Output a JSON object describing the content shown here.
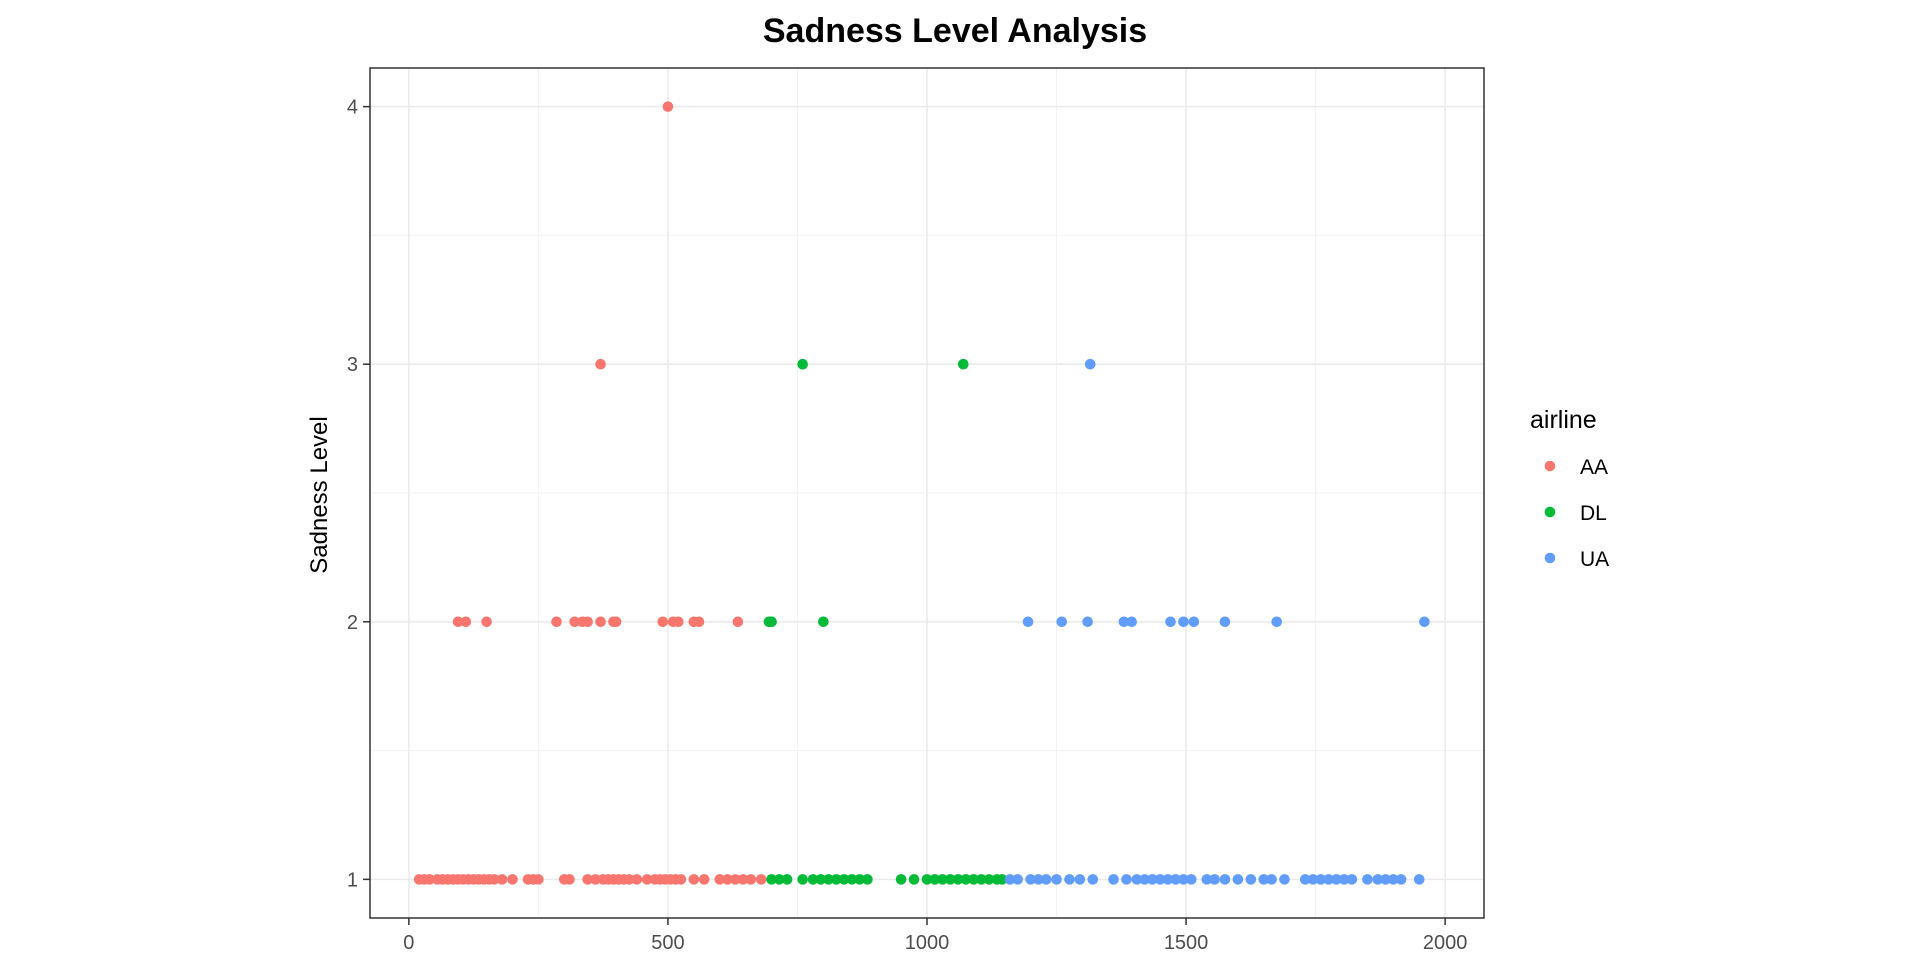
{
  "chart_data": {
    "type": "scatter",
    "title": "Sadness Level Analysis",
    "xlabel": "",
    "ylabel": "Sadness Level",
    "xlim": [
      -75,
      2075
    ],
    "ylim": [
      0.85,
      4.15
    ],
    "x_ticks": [
      0,
      500,
      1000,
      1500,
      2000
    ],
    "y_ticks": [
      1,
      2,
      3,
      4
    ],
    "grid": true,
    "legend": {
      "title": "airline",
      "position": "right"
    },
    "series": [
      {
        "name": "AA",
        "color": "#F8766D",
        "points": [
          [
            500,
            4
          ],
          [
            370,
            3
          ],
          [
            95,
            2
          ],
          [
            110,
            2
          ],
          [
            150,
            2
          ],
          [
            285,
            2
          ],
          [
            320,
            2
          ],
          [
            335,
            2
          ],
          [
            345,
            2
          ],
          [
            370,
            2
          ],
          [
            395,
            2
          ],
          [
            400,
            2
          ],
          [
            490,
            2
          ],
          [
            510,
            2
          ],
          [
            520,
            2
          ],
          [
            550,
            2
          ],
          [
            560,
            2
          ],
          [
            635,
            2
          ],
          [
            20,
            1
          ],
          [
            30,
            1
          ],
          [
            40,
            1
          ],
          [
            55,
            1
          ],
          [
            65,
            1
          ],
          [
            75,
            1
          ],
          [
            85,
            1
          ],
          [
            95,
            1
          ],
          [
            105,
            1
          ],
          [
            115,
            1
          ],
          [
            125,
            1
          ],
          [
            135,
            1
          ],
          [
            145,
            1
          ],
          [
            155,
            1
          ],
          [
            165,
            1
          ],
          [
            180,
            1
          ],
          [
            200,
            1
          ],
          [
            230,
            1
          ],
          [
            240,
            1
          ],
          [
            250,
            1
          ],
          [
            300,
            1
          ],
          [
            310,
            1
          ],
          [
            345,
            1
          ],
          [
            360,
            1
          ],
          [
            375,
            1
          ],
          [
            385,
            1
          ],
          [
            395,
            1
          ],
          [
            405,
            1
          ],
          [
            415,
            1
          ],
          [
            425,
            1
          ],
          [
            440,
            1
          ],
          [
            460,
            1
          ],
          [
            475,
            1
          ],
          [
            485,
            1
          ],
          [
            495,
            1
          ],
          [
            505,
            1
          ],
          [
            515,
            1
          ],
          [
            525,
            1
          ],
          [
            550,
            1
          ],
          [
            570,
            1
          ],
          [
            600,
            1
          ],
          [
            615,
            1
          ],
          [
            630,
            1
          ],
          [
            645,
            1
          ],
          [
            660,
            1
          ],
          [
            680,
            1
          ]
        ]
      },
      {
        "name": "DL",
        "color": "#00BA38",
        "points": [
          [
            760,
            3
          ],
          [
            1070,
            3
          ],
          [
            695,
            2
          ],
          [
            700,
            2
          ],
          [
            800,
            2
          ],
          [
            700,
            1
          ],
          [
            715,
            1
          ],
          [
            730,
            1
          ],
          [
            760,
            1
          ],
          [
            780,
            1
          ],
          [
            795,
            1
          ],
          [
            810,
            1
          ],
          [
            825,
            1
          ],
          [
            840,
            1
          ],
          [
            855,
            1
          ],
          [
            870,
            1
          ],
          [
            885,
            1
          ],
          [
            950,
            1
          ],
          [
            975,
            1
          ],
          [
            1000,
            1
          ],
          [
            1015,
            1
          ],
          [
            1030,
            1
          ],
          [
            1045,
            1
          ],
          [
            1060,
            1
          ],
          [
            1075,
            1
          ],
          [
            1090,
            1
          ],
          [
            1105,
            1
          ],
          [
            1120,
            1
          ],
          [
            1135,
            1
          ],
          [
            1145,
            1
          ]
        ]
      },
      {
        "name": "UA",
        "color": "#619CFF",
        "points": [
          [
            1315,
            3
          ],
          [
            1195,
            2
          ],
          [
            1260,
            2
          ],
          [
            1310,
            2
          ],
          [
            1380,
            2
          ],
          [
            1395,
            2
          ],
          [
            1470,
            2
          ],
          [
            1495,
            2
          ],
          [
            1515,
            2
          ],
          [
            1575,
            2
          ],
          [
            1675,
            2
          ],
          [
            1960,
            2
          ],
          [
            1160,
            1
          ],
          [
            1175,
            1
          ],
          [
            1200,
            1
          ],
          [
            1215,
            1
          ],
          [
            1230,
            1
          ],
          [
            1250,
            1
          ],
          [
            1275,
            1
          ],
          [
            1295,
            1
          ],
          [
            1320,
            1
          ],
          [
            1360,
            1
          ],
          [
            1385,
            1
          ],
          [
            1405,
            1
          ],
          [
            1420,
            1
          ],
          [
            1435,
            1
          ],
          [
            1450,
            1
          ],
          [
            1465,
            1
          ],
          [
            1480,
            1
          ],
          [
            1495,
            1
          ],
          [
            1510,
            1
          ],
          [
            1540,
            1
          ],
          [
            1555,
            1
          ],
          [
            1575,
            1
          ],
          [
            1600,
            1
          ],
          [
            1625,
            1
          ],
          [
            1650,
            1
          ],
          [
            1665,
            1
          ],
          [
            1690,
            1
          ],
          [
            1730,
            1
          ],
          [
            1745,
            1
          ],
          [
            1760,
            1
          ],
          [
            1775,
            1
          ],
          [
            1790,
            1
          ],
          [
            1805,
            1
          ],
          [
            1820,
            1
          ],
          [
            1850,
            1
          ],
          [
            1870,
            1
          ],
          [
            1885,
            1
          ],
          [
            1900,
            1
          ],
          [
            1915,
            1
          ],
          [
            1950,
            1
          ]
        ]
      }
    ]
  }
}
